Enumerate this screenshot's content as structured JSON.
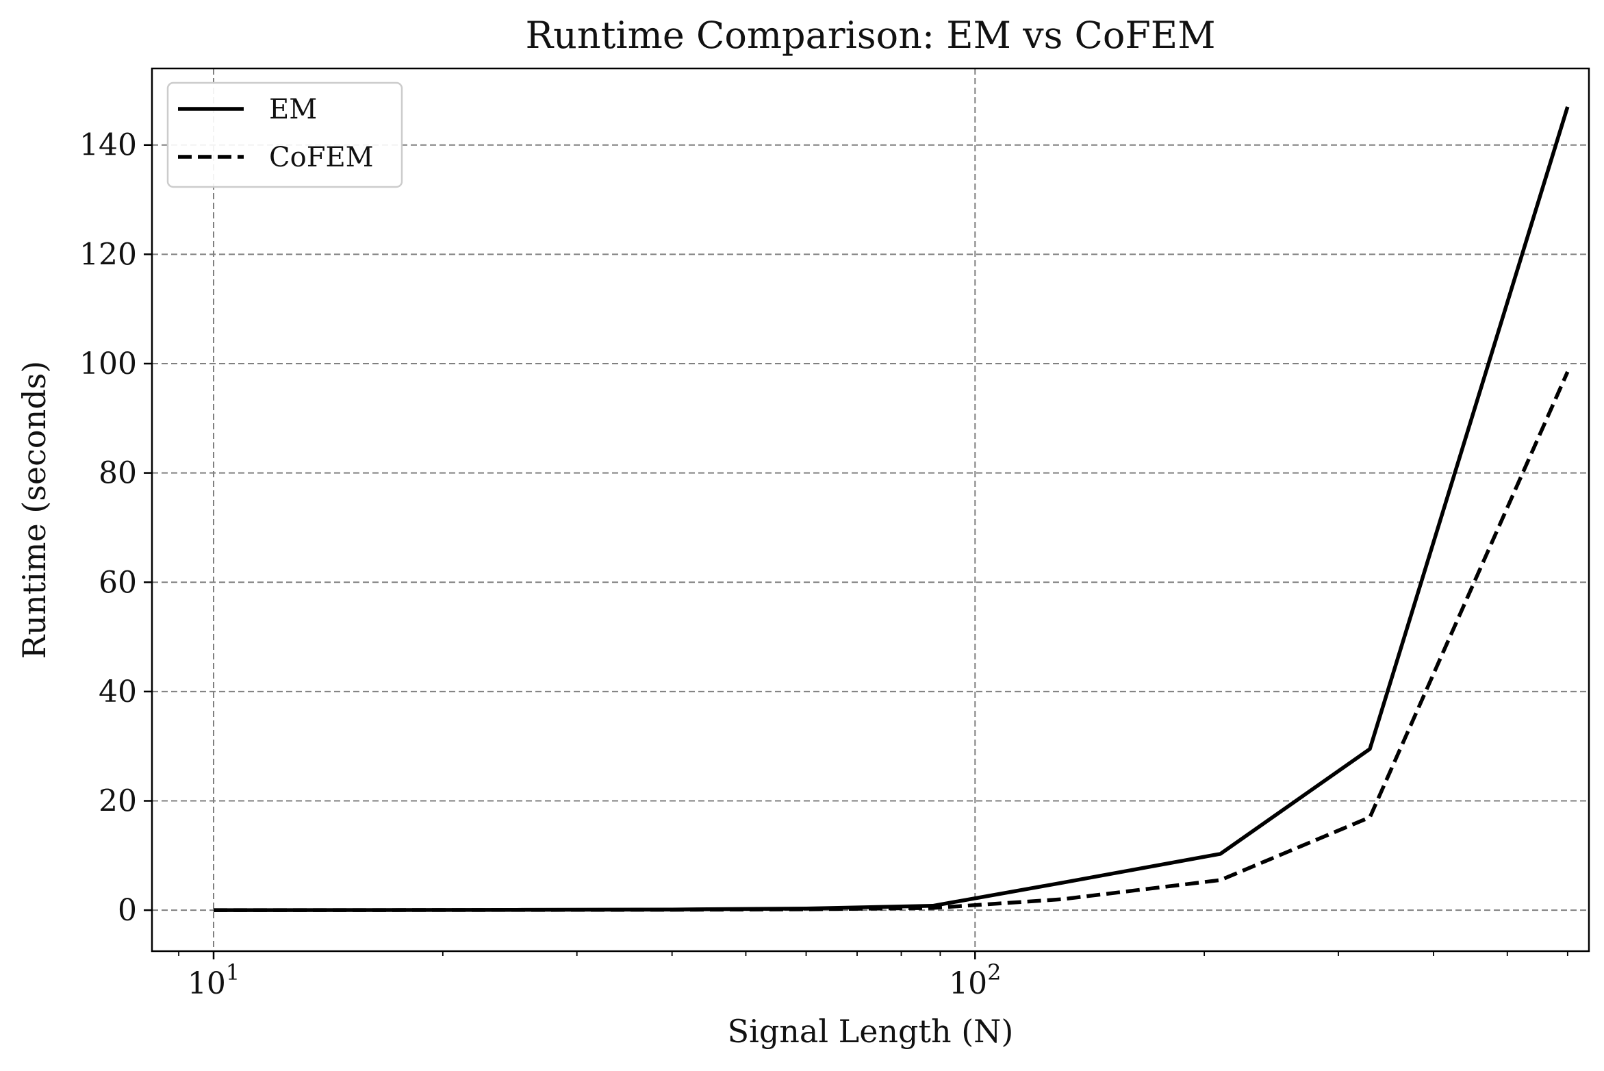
{
  "chart_data": {
    "type": "line",
    "title": "Runtime Comparison: EM vs CoFEM",
    "xlabel": "Signal Length (N)",
    "ylabel": "Runtime (seconds)",
    "xscale": "log",
    "xlim": [
      8.3,
      640
    ],
    "ylim": [
      -7.5,
      154
    ],
    "x_ticks": [
      {
        "value": 10,
        "base": "10",
        "exp": "1"
      },
      {
        "value": 100,
        "base": "10",
        "exp": "2"
      }
    ],
    "y_ticks": [
      0,
      20,
      40,
      60,
      80,
      100,
      120,
      140
    ],
    "grid": true,
    "legend_position": "upper-left",
    "x": [
      10,
      16,
      25,
      40,
      60,
      88,
      130,
      210,
      330,
      600
    ],
    "series": [
      {
        "name": "EM",
        "style": "solid",
        "color": "#000000",
        "values": [
          0.0,
          0.02,
          0.05,
          0.12,
          0.3,
          0.8,
          5.0,
          10.3,
          29.5,
          147.0
        ]
      },
      {
        "name": "CoFEM",
        "style": "dashed",
        "color": "#000000",
        "values": [
          0.0,
          0.01,
          0.03,
          0.07,
          0.15,
          0.4,
          2.0,
          5.5,
          17.0,
          98.5
        ]
      }
    ]
  }
}
